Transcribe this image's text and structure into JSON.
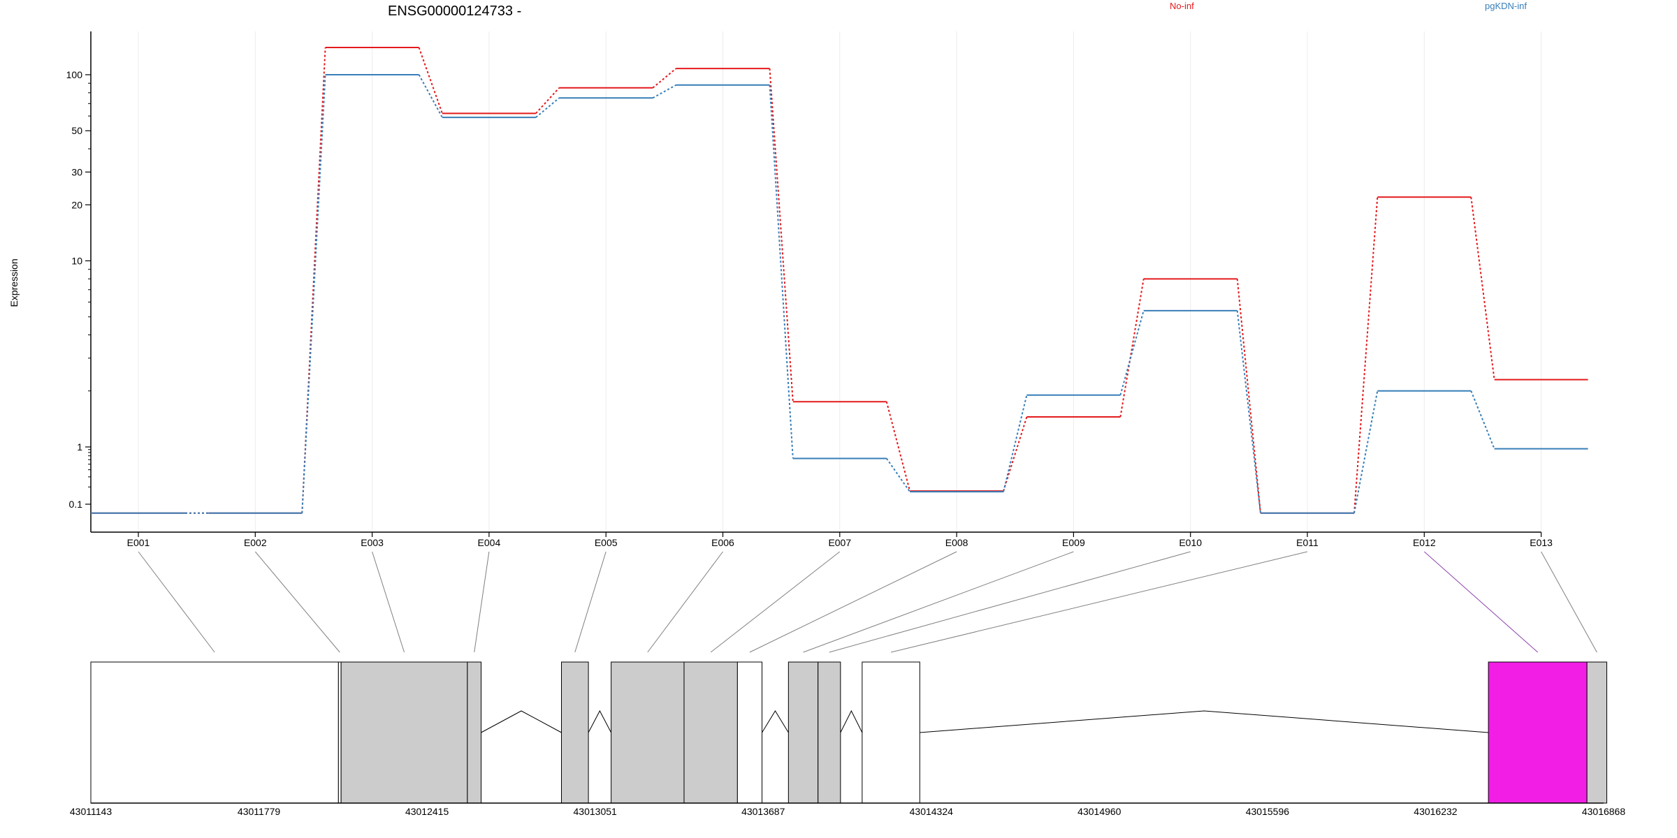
{
  "chart_data": {
    "type": "line",
    "title": "ENSG00000124733 -",
    "ylabel": "Expression",
    "xlabel": "",
    "y_scale": "log",
    "grid": "vertical",
    "legend_position": "top-right",
    "colors": {
      "no_inf": "#e41a1c",
      "pgkdn_inf": "#377eb8",
      "highlight_exon": "#f21ee6",
      "exon_fill": "#cccccc"
    },
    "categories": [
      "E001",
      "E002",
      "E003",
      "E004",
      "E005",
      "E006",
      "E007",
      "E008",
      "E009",
      "E010",
      "E011",
      "E012",
      "E013"
    ],
    "y_ticks": [
      {
        "v": 0.1,
        "label": "0.1"
      },
      {
        "v": 1,
        "label": "1"
      },
      {
        "v": 10,
        "label": "10"
      },
      {
        "v": 20,
        "label": "20"
      },
      {
        "v": 30,
        "label": "30"
      },
      {
        "v": 50,
        "label": "50"
      },
      {
        "v": 100,
        "label": "100"
      }
    ],
    "series": [
      {
        "name": "No-inf",
        "values": [
          0.07,
          0.07,
          140,
          62,
          85,
          108,
          1.75,
          0.17,
          1.45,
          8.0,
          0.07,
          22,
          2.3
        ]
      },
      {
        "name": "pgKDN-inf",
        "values": [
          0.07,
          0.07,
          100,
          59,
          75,
          88,
          0.63,
          0.165,
          1.9,
          5.4,
          0.07,
          2.0,
          0.93
        ]
      }
    ],
    "genomic_axis": {
      "range": [
        43011143,
        43016868
      ],
      "ticks": [
        "43011143",
        "43011779",
        "43012415",
        "43013051",
        "43013687",
        "43014324",
        "43014960",
        "43015596",
        "43016232",
        "43016868"
      ]
    },
    "gene_model": {
      "exons": [
        {
          "id": "E001",
          "start": 43011143,
          "end": 43012080,
          "fill": "white"
        },
        {
          "id": "E002",
          "start": 43012080,
          "end": 43012090,
          "fill": "white"
        },
        {
          "id": "E003",
          "start": 43012090,
          "end": 43012568,
          "fill": "gray"
        },
        {
          "id": "E004",
          "start": 43012568,
          "end": 43012620,
          "fill": "gray"
        },
        {
          "id": "E005",
          "start": 43012924,
          "end": 43013026,
          "fill": "gray"
        },
        {
          "id": "E006",
          "start": 43013112,
          "end": 43013388,
          "fill": "gray"
        },
        {
          "id": "E007",
          "start": 43013388,
          "end": 43013590,
          "fill": "gray"
        },
        {
          "id": "E008",
          "start": 43013590,
          "end": 43013683,
          "fill": "white"
        },
        {
          "id": "E009",
          "start": 43013783,
          "end": 43013895,
          "fill": "gray"
        },
        {
          "id": "E010",
          "start": 43013895,
          "end": 43013980,
          "fill": "gray"
        },
        {
          "id": "E011",
          "start": 43014062,
          "end": 43014280,
          "fill": "white"
        },
        {
          "id": "E012",
          "start": 43016432,
          "end": 43016805,
          "fill": "highlight"
        },
        {
          "id": "E013",
          "start": 43016805,
          "end": 43016880,
          "fill": "gray"
        }
      ],
      "introns": [
        [
          43012620,
          43012924
        ],
        [
          43013026,
          43013112
        ],
        [
          43013683,
          43013783
        ],
        [
          43013980,
          43014062
        ],
        [
          43014280,
          43016432
        ]
      ]
    }
  }
}
